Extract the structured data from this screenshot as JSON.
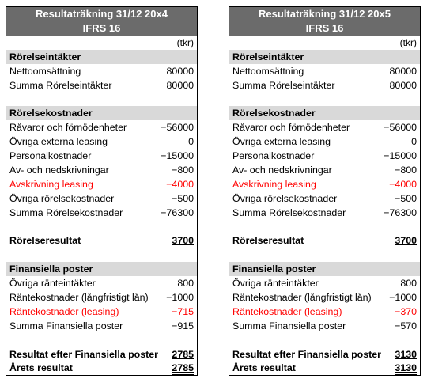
{
  "left": {
    "title": "Resultaträkning 31/12 20x4",
    "subtitle": "IFRS 16",
    "unit": "(tkr)",
    "sec_income": "Rörelseintäkter",
    "netto_label": "Nettoomsättning",
    "netto_val": "80000",
    "sum_income_label": "Summa Rörelseintäkter",
    "sum_income_val": "80000",
    "sec_costs": "Rörelsekostnader",
    "raw_label": "Råvaror och förnödenheter",
    "raw_val": "−56000",
    "ext_label": "Övriga externa leasing",
    "ext_val": "0",
    "pers_label": "Personalkostnader",
    "pers_val": "−15000",
    "av_label": "Av- och nedskrivningar",
    "av_val": "−800",
    "avs_label": "Avskrivning leasing",
    "avs_val": "−4000",
    "ovr_label": "Övriga rörelsekostnader",
    "ovr_val": "−500",
    "sum_costs_label": "Summa Rörelsekostnader",
    "sum_costs_val": "−76300",
    "res_label": "Rörelseresultat",
    "res_val": "3700",
    "sec_fin": "Finansiella poster",
    "rint_label": "Övriga ränteintäkter",
    "rint_val": "800",
    "rkost_label": "Räntekostnader (långfristigt lån)",
    "rkost_val": "−1000",
    "rlease_label": "Räntekostnader (leasing)",
    "rlease_val": "−715",
    "sum_fin_label": "Summa Finansiella poster",
    "sum_fin_val": "−915",
    "after_fin_label": "Resultat efter Finansiella poster",
    "after_fin_val": "2785",
    "year_label": "Årets resultat",
    "year_val": "2785"
  },
  "right": {
    "title": "Resultaträkning 31/12 20x5",
    "subtitle": "IFRS 16",
    "unit": "(tkr)",
    "sec_income": "Rörelseintäkter",
    "netto_label": "Nettoomsättning",
    "netto_val": "80000",
    "sum_income_label": "Summa Rörelseintäkter",
    "sum_income_val": "80000",
    "sec_costs": "Rörelsekostnader",
    "raw_label": "Råvaror och förnödenheter",
    "raw_val": "−56000",
    "ext_label": "Övriga externa leasing",
    "ext_val": "0",
    "pers_label": "Personalkostnader",
    "pers_val": "−15000",
    "av_label": "Av- och nedskrivningar",
    "av_val": "−800",
    "avs_label": "Avskrivning leasing",
    "avs_val": "−4000",
    "ovr_label": "Övriga rörelsekostnader",
    "ovr_val": "−500",
    "sum_costs_label": "Summa Rörelsekostnader",
    "sum_costs_val": "−76300",
    "res_label": "Rörelseresultat",
    "res_val": "3700",
    "sec_fin": "Finansiella poster",
    "rint_label": "Övriga ränteintäkter",
    "rint_val": "800",
    "rkost_label": "Räntekostnader (långfristigt lån)",
    "rkost_val": "−1000",
    "rlease_label": "Räntekostnader (leasing)",
    "rlease_val": "−370",
    "sum_fin_label": "Summa Finansiella poster",
    "sum_fin_val": "−570",
    "after_fin_label": "Resultat efter Finansiella poster",
    "after_fin_val": "3130",
    "year_label": "Årets resultat",
    "year_val": "3130"
  },
  "colors": {
    "header_bg": "#6b6b6b",
    "section_bg": "#d9d9d9",
    "highlight": "#ff0000"
  }
}
